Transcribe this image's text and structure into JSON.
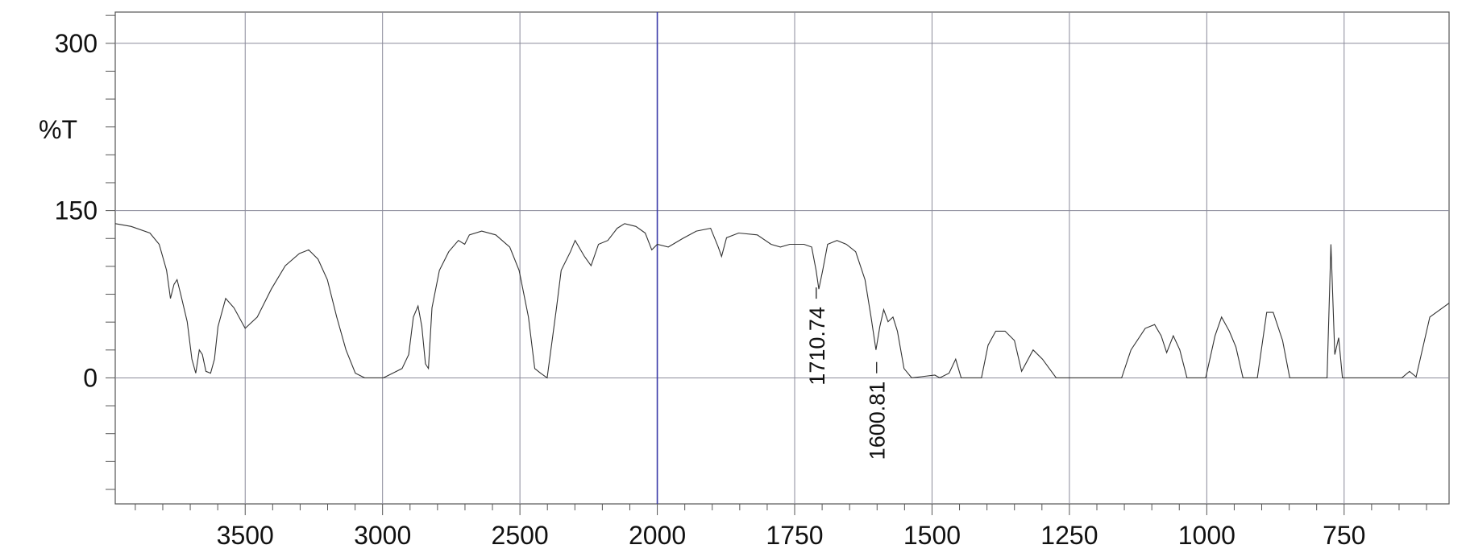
{
  "chart_data": {
    "type": "line",
    "ylabel": "%T",
    "color": "#333333",
    "grid": true,
    "xlim": [
      3973,
      559
    ],
    "x_break": 2000,
    "x_break_ratio": 2,
    "break_color": "#3a3aa8",
    "xticks": [
      3500,
      3000,
      2500,
      2000,
      1750,
      1500,
      1250,
      1000,
      750
    ],
    "xminorticks": [
      3900,
      3800,
      3700,
      3600,
      3400,
      3300,
      3200,
      3100,
      2900,
      2800,
      2700,
      2600,
      2400,
      2300,
      2200,
      2100,
      1950,
      1900,
      1850,
      1800,
      1700,
      1650,
      1600,
      1550,
      1450,
      1400,
      1350,
      1300,
      1200,
      1150,
      1100,
      1050,
      950,
      900,
      850,
      800,
      700,
      650,
      600
    ],
    "ylim": [
      -113,
      328
    ],
    "yticks": [
      0,
      150,
      300
    ],
    "yminorticks": [
      -100,
      -75,
      -50,
      -25,
      25,
      50,
      75,
      100,
      125,
      175,
      200,
      225,
      250,
      275,
      325
    ],
    "x": [
      3973,
      3915,
      3847,
      3813,
      3786,
      3772,
      3759,
      3748,
      3735,
      3711,
      3694,
      3680,
      3667,
      3656,
      3643,
      3626,
      3612,
      3599,
      3571,
      3541,
      3500,
      3456,
      3405,
      3354,
      3303,
      3269,
      3235,
      3201,
      3167,
      3133,
      3099,
      3065,
      2997,
      2963,
      2929,
      2905,
      2888,
      2871,
      2857,
      2844,
      2833,
      2820,
      2793,
      2759,
      2724,
      2701,
      2684,
      2639,
      2588,
      2537,
      2503,
      2469,
      2446,
      2425,
      2401,
      2367,
      2350,
      2316,
      2299,
      2265,
      2241,
      2214,
      2180,
      2146,
      2119,
      2078,
      2044,
      2020,
      2000,
      1980,
      1954,
      1929,
      1903,
      1889,
      1883,
      1874,
      1852,
      1818,
      1793,
      1776,
      1759,
      1733,
      1719,
      1711,
      1706,
      1699,
      1690,
      1673,
      1656,
      1639,
      1622,
      1611,
      1602,
      1595,
      1588,
      1580,
      1571,
      1563,
      1551,
      1537,
      1495,
      1486,
      1469,
      1457,
      1447,
      1410,
      1398,
      1384,
      1367,
      1350,
      1337,
      1316,
      1299,
      1274,
      1257,
      1155,
      1138,
      1112,
      1095,
      1083,
      1073,
      1061,
      1049,
      1036,
      1002,
      985,
      973,
      959,
      947,
      934,
      908,
      891,
      879,
      862,
      849,
      781,
      774,
      767,
      760,
      753,
      645,
      631,
      619,
      594,
      559
    ],
    "values": [
      138.3,
      135.8,
      129.9,
      119.8,
      96.4,
      71.2,
      83.8,
      88.0,
      75.4,
      50.3,
      16.8,
      4.2,
      25.1,
      20.9,
      5.9,
      4.2,
      16.8,
      46.1,
      71.2,
      62.8,
      44.4,
      54.5,
      79.6,
      100.6,
      111.5,
      114.8,
      106.4,
      88.0,
      54.5,
      25.1,
      4.2,
      0,
      0,
      4.2,
      8.4,
      20.9,
      54.5,
      64.5,
      46.1,
      12.6,
      8.4,
      62.8,
      96.4,
      113.1,
      123.2,
      119.8,
      128.2,
      131.6,
      128.2,
      117.3,
      96.4,
      54.5,
      8.4,
      4.2,
      0,
      62.8,
      96.4,
      113.1,
      123.2,
      108.9,
      100.6,
      119.8,
      123.2,
      134.1,
      138.3,
      135.8,
      129.9,
      114.8,
      119.8,
      117.3,
      124.9,
      131.6,
      134.1,
      117.3,
      108.9,
      125.7,
      129.9,
      128.2,
      119.8,
      117.3,
      119.8,
      119.8,
      117.3,
      96.4,
      79.6,
      96.4,
      119.8,
      123.2,
      119.8,
      113.1,
      88.0,
      54.5,
      25.1,
      46.1,
      61.2,
      50.3,
      54.5,
      41.9,
      8.4,
      0,
      2.5,
      0,
      4.2,
      16.8,
      0,
      0,
      29.3,
      41.9,
      41.9,
      33.5,
      5.9,
      25.1,
      16.8,
      0,
      0,
      0,
      25.1,
      44.4,
      47.8,
      37.7,
      22.6,
      37.7,
      25.1,
      0,
      0,
      37.7,
      54.5,
      41.9,
      27.7,
      0,
      0,
      58.7,
      58.7,
      33.5,
      0,
      0,
      119.8,
      20.9,
      36.0,
      0,
      0,
      5.9,
      0.8,
      54.5,
      67.0
    ],
    "annotations": [
      {
        "value": 1710.74,
        "label": "1710.74"
      },
      {
        "value": 1600.81,
        "label": "1600.81"
      }
    ]
  }
}
